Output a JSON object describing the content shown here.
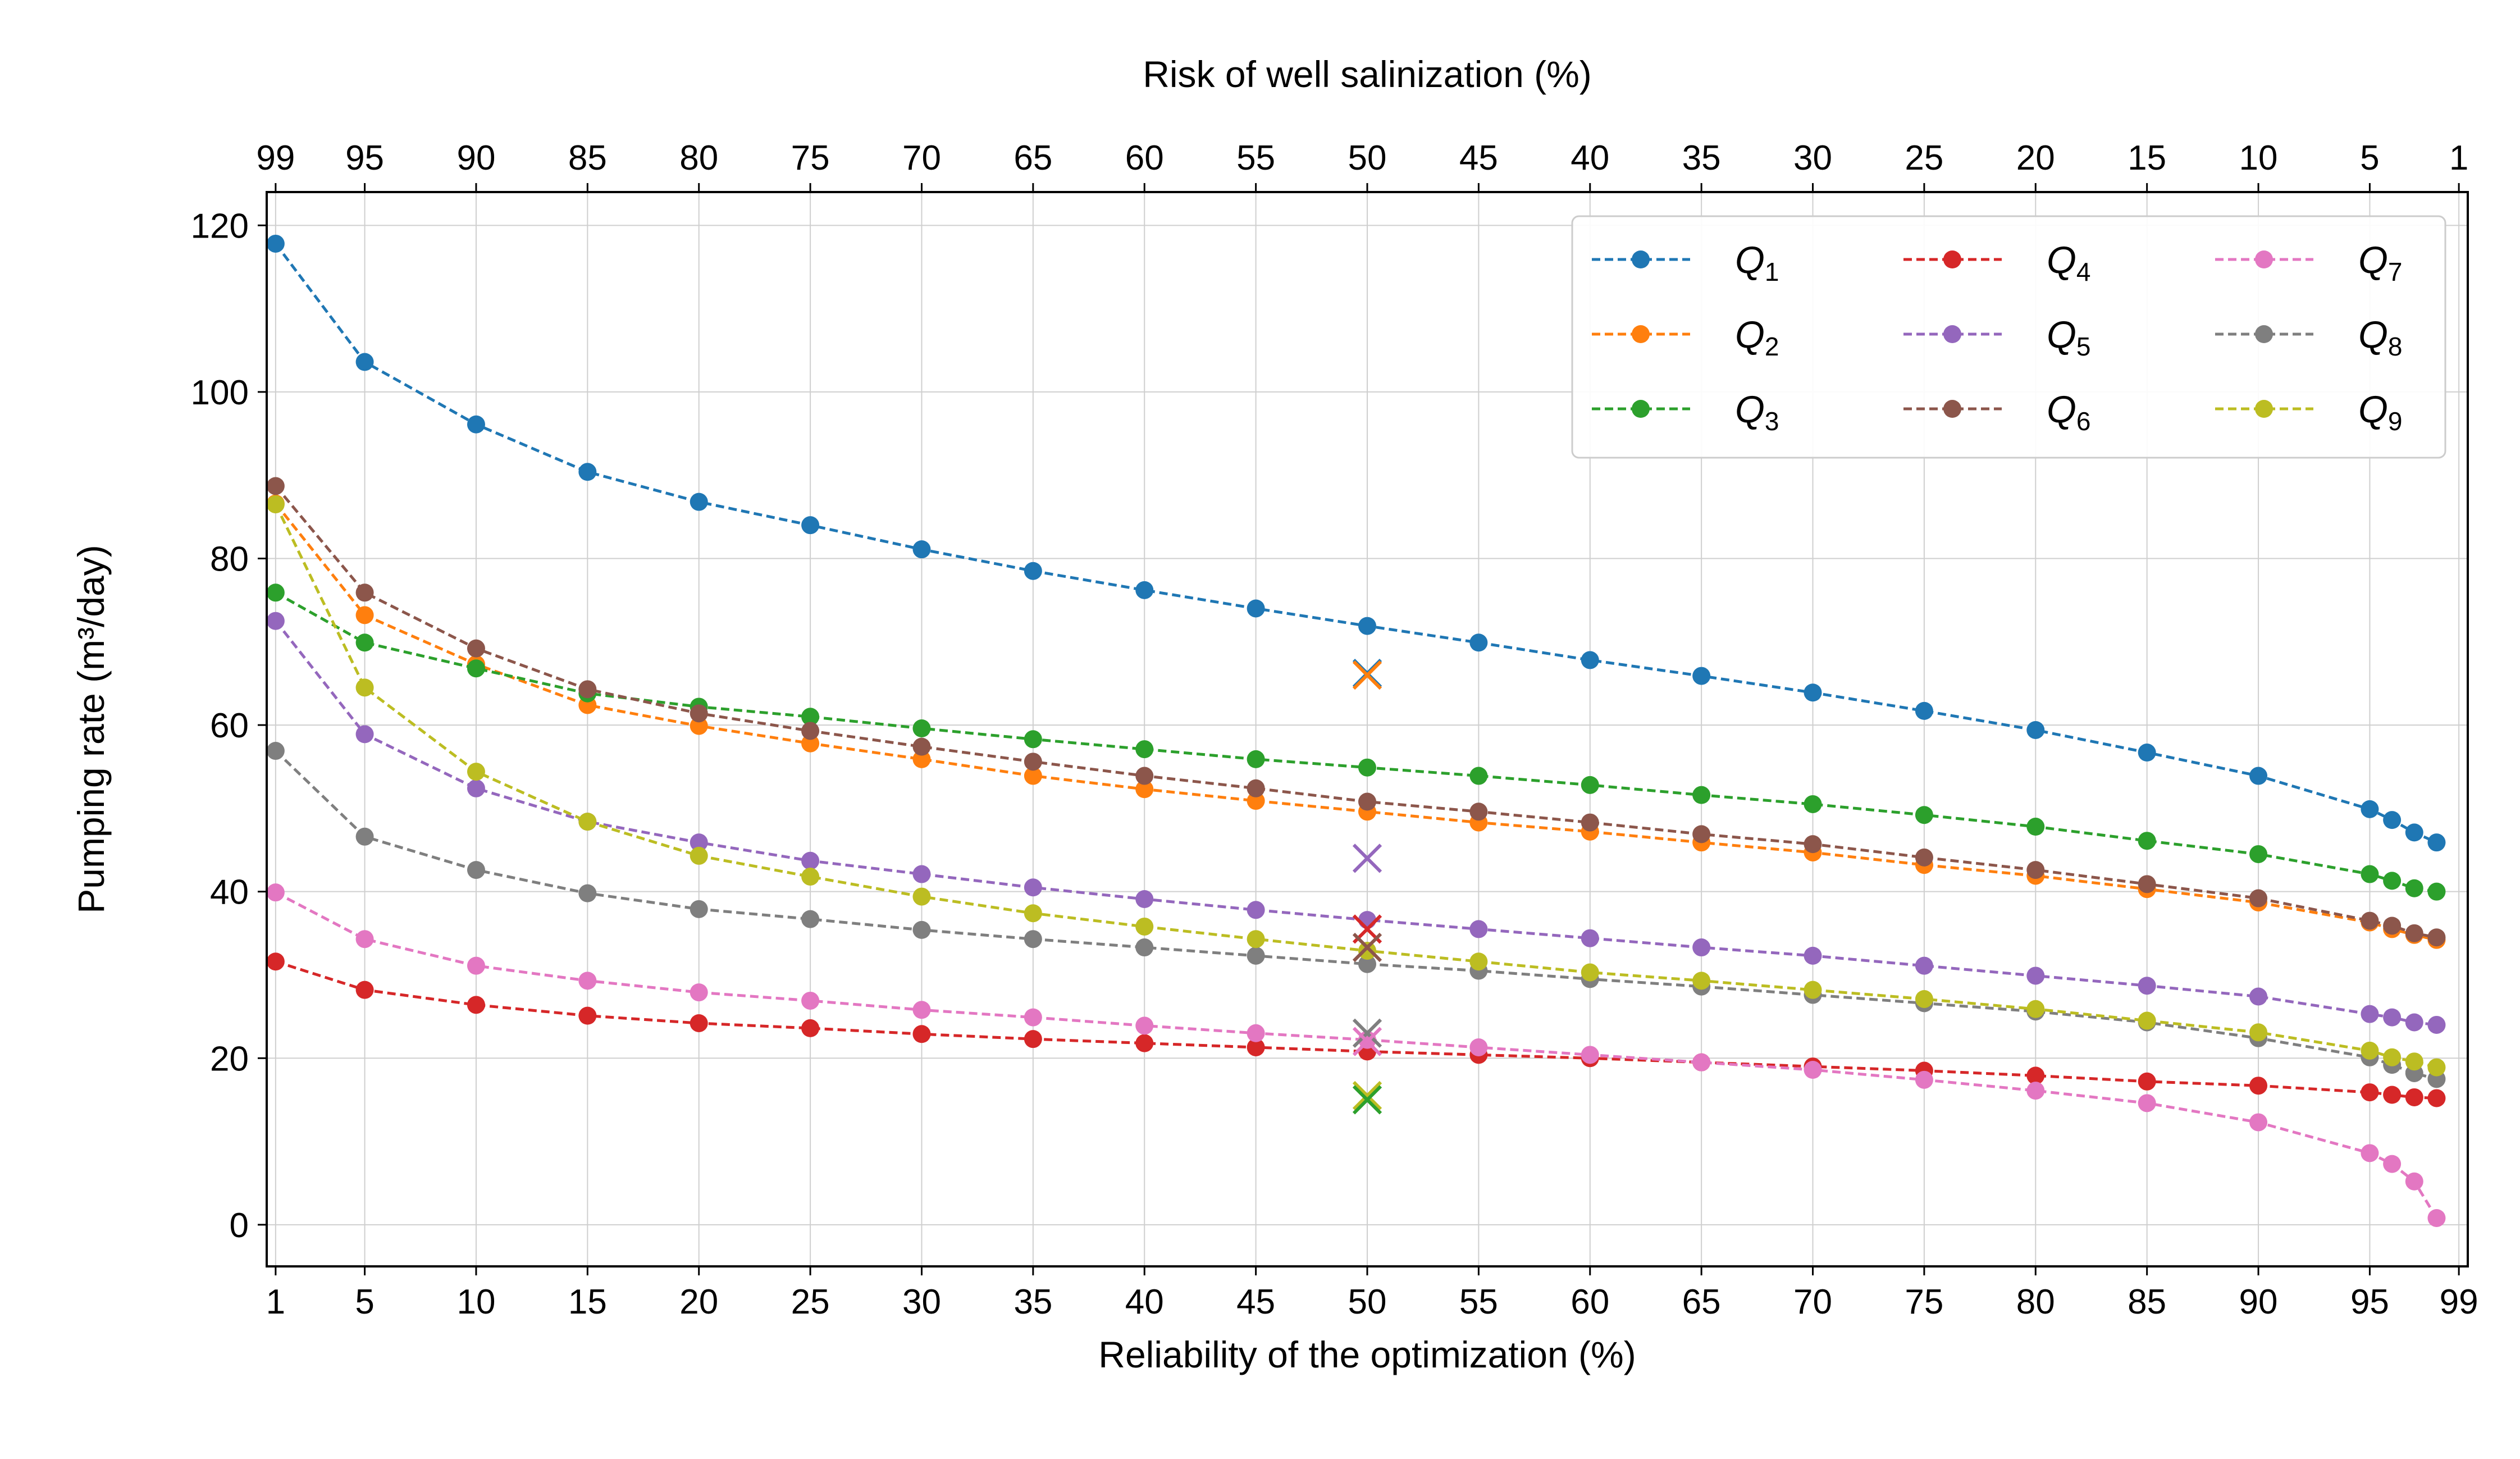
{
  "chart_data": {
    "type": "line",
    "xlabel": "Reliability of the optimization (%)",
    "ylabel": "Pumping rate (m³/day)",
    "top_xlabel": "Risk of well salinization (%)",
    "x_ticks": [
      "1",
      "5",
      "10",
      "15",
      "20",
      "25",
      "30",
      "35",
      "40",
      "45",
      "50",
      "55",
      "60",
      "65",
      "70",
      "75",
      "80",
      "85",
      "90",
      "95",
      "99"
    ],
    "top_x_ticks": [
      "99",
      "95",
      "90",
      "85",
      "80",
      "75",
      "70",
      "65",
      "60",
      "55",
      "50",
      "45",
      "40",
      "35",
      "30",
      "25",
      "20",
      "15",
      "10",
      "5",
      "1"
    ],
    "y_ticks": [
      "0",
      "20",
      "40",
      "60",
      "80",
      "100",
      "120"
    ],
    "xlim": [
      0.6,
      99.4
    ],
    "ylim": [
      -5,
      124
    ],
    "grid": true,
    "legend_position": "top-right",
    "legend_columns": 3,
    "x": [
      1,
      5,
      10,
      15,
      20,
      25,
      30,
      35,
      40,
      45,
      50,
      55,
      60,
      65,
      70,
      75,
      80,
      85,
      90,
      95,
      96,
      97,
      98
    ],
    "series": [
      {
        "name": "Q",
        "subscript": "1",
        "color": "#1f77b4",
        "values": [
          117.8,
          103.6,
          96.1,
          90.4,
          86.8,
          84.0,
          81.1,
          78.5,
          76.2,
          74.0,
          71.9,
          69.9,
          67.8,
          65.9,
          63.9,
          61.7,
          59.4,
          56.7,
          53.9,
          49.9,
          48.6,
          47.1,
          45.9
        ]
      },
      {
        "name": "Q",
        "subscript": "2",
        "color": "#ff7f0e",
        "values": [
          86.6,
          73.2,
          67.3,
          62.4,
          59.9,
          57.8,
          55.9,
          53.9,
          52.3,
          50.9,
          49.6,
          48.3,
          47.2,
          45.9,
          44.7,
          43.2,
          41.9,
          40.3,
          38.7,
          36.3,
          35.5,
          34.8,
          34.2
        ]
      },
      {
        "name": "Q",
        "subscript": "3",
        "color": "#2ca02c",
        "values": [
          75.9,
          69.9,
          66.8,
          63.8,
          62.2,
          61.0,
          59.6,
          58.3,
          57.1,
          55.9,
          54.9,
          53.9,
          52.8,
          51.6,
          50.5,
          49.2,
          47.8,
          46.1,
          44.5,
          42.1,
          41.3,
          40.4,
          40.0
        ]
      },
      {
        "name": "Q",
        "subscript": "4",
        "color": "#d62728",
        "values": [
          31.6,
          28.2,
          26.4,
          25.1,
          24.2,
          23.6,
          22.9,
          22.3,
          21.8,
          21.3,
          20.8,
          20.4,
          20.0,
          19.5,
          19.0,
          18.5,
          17.9,
          17.2,
          16.7,
          15.9,
          15.6,
          15.3,
          15.2
        ]
      },
      {
        "name": "Q",
        "subscript": "5",
        "color": "#9467bd",
        "values": [
          72.5,
          58.9,
          52.4,
          48.4,
          45.9,
          43.7,
          42.1,
          40.5,
          39.1,
          37.8,
          36.6,
          35.5,
          34.4,
          33.3,
          32.3,
          31.1,
          29.9,
          28.7,
          27.4,
          25.3,
          24.9,
          24.3,
          24.0
        ]
      },
      {
        "name": "Q",
        "subscript": "6",
        "color": "#8c564b",
        "values": [
          88.7,
          75.9,
          69.2,
          64.3,
          61.4,
          59.3,
          57.4,
          55.6,
          53.9,
          52.4,
          50.8,
          49.6,
          48.3,
          46.9,
          45.7,
          44.1,
          42.6,
          40.9,
          39.2,
          36.5,
          35.9,
          35.0,
          34.5
        ]
      },
      {
        "name": "Q",
        "subscript": "7",
        "color": "#e377c2",
        "values": [
          39.9,
          34.3,
          31.1,
          29.3,
          27.9,
          26.9,
          25.8,
          24.9,
          23.9,
          23.0,
          22.2,
          21.3,
          20.4,
          19.5,
          18.6,
          17.4,
          16.1,
          14.6,
          12.3,
          8.6,
          7.3,
          5.2,
          0.8
        ]
      },
      {
        "name": "Q",
        "subscript": "8",
        "color": "#7f7f7f",
        "values": [
          56.9,
          46.6,
          42.6,
          39.8,
          37.9,
          36.7,
          35.4,
          34.3,
          33.3,
          32.3,
          31.3,
          30.5,
          29.5,
          28.6,
          27.6,
          26.6,
          25.6,
          24.3,
          22.4,
          20.1,
          19.2,
          18.2,
          17.5
        ]
      },
      {
        "name": "Q",
        "subscript": "9",
        "color": "#bcbd22",
        "values": [
          86.5,
          64.5,
          54.4,
          48.4,
          44.3,
          41.8,
          39.4,
          37.4,
          35.8,
          34.3,
          32.9,
          31.6,
          30.3,
          29.3,
          28.2,
          27.1,
          25.9,
          24.5,
          23.1,
          20.9,
          20.1,
          19.6,
          18.9
        ]
      }
    ],
    "markers_at_50": [
      {
        "series": "Q1",
        "value": 66.2,
        "color": "#1f77b4"
      },
      {
        "series": "Q2",
        "value": 66.0,
        "color": "#ff7f0e"
      },
      {
        "series": "Q5",
        "value": 44.0,
        "color": "#9467bd"
      },
      {
        "series": "Q4",
        "value": 35.5,
        "color": "#d62728"
      },
      {
        "series": "Q6",
        "value": 33.3,
        "color": "#8c564b"
      },
      {
        "series": "Q8",
        "value": 23.0,
        "color": "#7f7f7f"
      },
      {
        "series": "Q7",
        "value": 22.0,
        "color": "#e377c2"
      },
      {
        "series": "Q9",
        "value": 15.5,
        "color": "#bcbd22"
      },
      {
        "series": "Q3",
        "value": 15.0,
        "color": "#2ca02c"
      }
    ]
  }
}
